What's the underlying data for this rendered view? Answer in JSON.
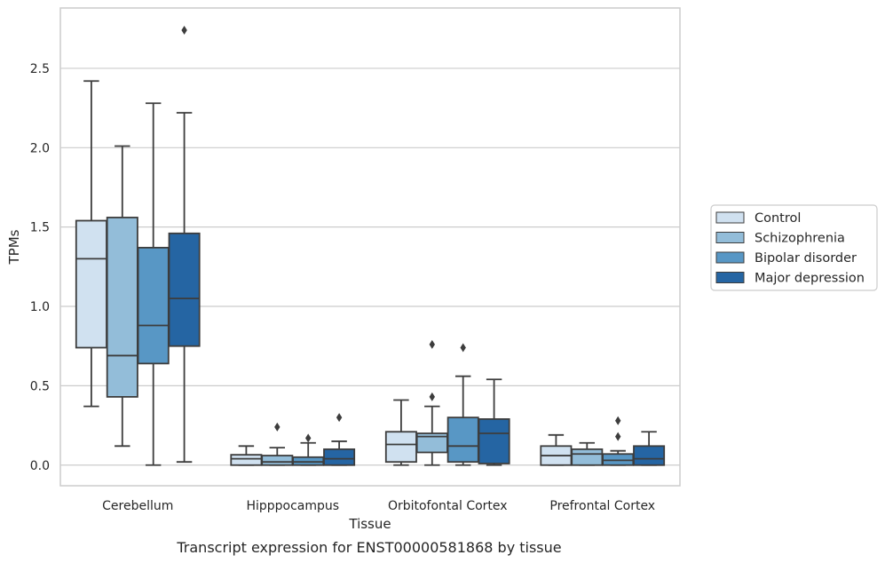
{
  "caption": "Transcript expression for ENST00000581868 by tissue",
  "chart_data": {
    "type": "box",
    "title": "",
    "xlabel": "Tissue",
    "ylabel": "TPMs",
    "ylim": [
      -0.13,
      2.88
    ],
    "yticks": [
      "0.0",
      "0.5",
      "1.0",
      "1.5",
      "2.0",
      "2.5"
    ],
    "grid": true,
    "legend_position": "right",
    "categories": [
      "Cerebellum",
      "Hipppocampus",
      "Orbitofontal Cortex",
      "Prefrontal Cortex"
    ],
    "series": [
      {
        "name": "Control",
        "color": "#d0e1f0",
        "boxes": [
          {
            "whislo": 0.37,
            "q1": 0.74,
            "med": 1.3,
            "q3": 1.54,
            "whishi": 2.42,
            "fliers": []
          },
          {
            "whislo": 0.0,
            "q1": 0.0,
            "med": 0.04,
            "q3": 0.065,
            "whishi": 0.12,
            "fliers": []
          },
          {
            "whislo": 0.0,
            "q1": 0.02,
            "med": 0.13,
            "q3": 0.21,
            "whishi": 0.41,
            "fliers": []
          },
          {
            "whislo": 0.0,
            "q1": 0.0,
            "med": 0.06,
            "q3": 0.12,
            "whishi": 0.19,
            "fliers": []
          }
        ]
      },
      {
        "name": "Schizophrenia",
        "color": "#93bdd9",
        "boxes": [
          {
            "whislo": 0.12,
            "q1": 0.43,
            "med": 0.69,
            "q3": 1.56,
            "whishi": 2.01,
            "fliers": []
          },
          {
            "whislo": 0.0,
            "q1": 0.0,
            "med": 0.02,
            "q3": 0.06,
            "whishi": 0.11,
            "fliers": [
              0.24
            ]
          },
          {
            "whislo": 0.0,
            "q1": 0.08,
            "med": 0.18,
            "q3": 0.2,
            "whishi": 0.37,
            "fliers": [
              0.43,
              0.76
            ]
          },
          {
            "whislo": 0.0,
            "q1": 0.0,
            "med": 0.07,
            "q3": 0.1,
            "whishi": 0.14,
            "fliers": []
          }
        ]
      },
      {
        "name": "Bipolar disorder",
        "color": "#5897c5",
        "boxes": [
          {
            "whislo": 0.0,
            "q1": 0.64,
            "med": 0.88,
            "q3": 1.37,
            "whishi": 2.28,
            "fliers": []
          },
          {
            "whislo": 0.0,
            "q1": 0.0,
            "med": 0.02,
            "q3": 0.05,
            "whishi": 0.14,
            "fliers": [
              0.17
            ]
          },
          {
            "whislo": 0.0,
            "q1": 0.02,
            "med": 0.12,
            "q3": 0.3,
            "whishi": 0.56,
            "fliers": [
              0.74
            ]
          },
          {
            "whislo": 0.0,
            "q1": 0.0,
            "med": 0.03,
            "q3": 0.07,
            "whishi": 0.09,
            "fliers": [
              0.18,
              0.28
            ]
          }
        ]
      },
      {
        "name": "Major depression",
        "color": "#2565a3",
        "boxes": [
          {
            "whislo": 0.02,
            "q1": 0.75,
            "med": 1.05,
            "q3": 1.46,
            "whishi": 2.22,
            "fliers": [
              2.74
            ]
          },
          {
            "whislo": 0.0,
            "q1": 0.0,
            "med": 0.04,
            "q3": 0.1,
            "whishi": 0.15,
            "fliers": [
              0.3
            ]
          },
          {
            "whislo": 0.0,
            "q1": 0.01,
            "med": 0.2,
            "q3": 0.29,
            "whishi": 0.54,
            "fliers": []
          },
          {
            "whislo": 0.0,
            "q1": 0.0,
            "med": 0.04,
            "q3": 0.12,
            "whishi": 0.21,
            "fliers": []
          }
        ]
      }
    ]
  }
}
